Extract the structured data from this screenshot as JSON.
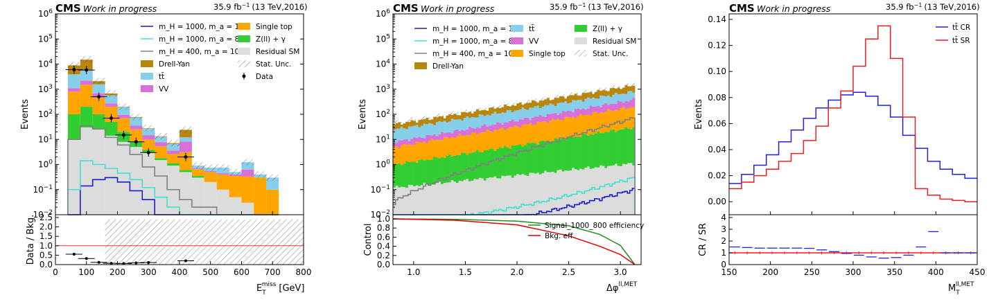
{
  "header": {
    "experiment": "CMS",
    "status": "Work in progress",
    "lumi_value": "35.9 fb",
    "lumi_exp": "−1",
    "lumi_energy": "(13 TeV,2016)"
  },
  "colors": {
    "drell_yan": "#b8860b",
    "ttbar": "#87ceeb",
    "vv": "#da70d6",
    "single_top": "#ffa500",
    "zll_gamma": "#32cd32",
    "residual": "#dcdcdc",
    "sig1": "#1c1ccc",
    "sig2": "#40e0d0",
    "sig3": "#808080",
    "cr": "#1e1ee6",
    "sr": "#ee1c1c",
    "sig_eff": "#228b22",
    "bkg_eff": "#e00000"
  },
  "chart_data": [
    {
      "type": "area",
      "id": "met",
      "xlabel": "E",
      "xlabel_sub": "T",
      "xlabel_sup": "miss",
      "xlabel_unit": "[GeV]",
      "ylabel": "Events",
      "ratio_ylabel": "Data / Bkg.",
      "log_y": true,
      "xlim": [
        0,
        800
      ],
      "ylim": [
        0.01,
        1000000
      ],
      "ratio_ylim": [
        0,
        2.0
      ],
      "xticks": [
        0,
        100,
        200,
        300,
        400,
        500,
        600,
        700,
        800
      ],
      "yticks": [
        "10^-2",
        "10^-1",
        "10^0",
        "10^1",
        "10^2",
        "10^3",
        "10^4",
        "10^5",
        "10^6"
      ],
      "ratio_yticks": [
        "0.0",
        "0.5",
        "1.0",
        "1.5",
        "2.0",
        "2.5"
      ],
      "bins": [
        40,
        80,
        120,
        160,
        200,
        240,
        280,
        320,
        360,
        400,
        440,
        480,
        520,
        560,
        600,
        640,
        680,
        720
      ],
      "stack": [
        {
          "name": "Residual SM",
          "key": "residual",
          "values": [
            10,
            30,
            25,
            14,
            8,
            5,
            3,
            1.5,
            0.9,
            0.5,
            0.3,
            0.2,
            0.1,
            0.05,
            0.03,
            0,
            0
          ]
        },
        {
          "name": "Z(ll) + γ",
          "key": "zll_gamma",
          "values": [
            90,
            170,
            75,
            36,
            12,
            3,
            0.8,
            0.3,
            0.2,
            0.1,
            0.05,
            0,
            0,
            0,
            0,
            0,
            0
          ]
        },
        {
          "name": "Single top",
          "key": "single_top",
          "values": [
            700,
            1300,
            350,
            150,
            50,
            17,
            6,
            3.5,
            1.5,
            2.5,
            0.3,
            0.3,
            0.3,
            0.3,
            0.3,
            0.3,
            0.1
          ]
        },
        {
          "name": "VV",
          "key": "vv",
          "values": [
            300,
            700,
            230,
            70,
            25,
            10,
            5,
            2.5,
            1,
            5,
            0.05,
            0.05,
            0.05,
            0.05,
            0.3,
            0,
            0
          ]
        },
        {
          "name": "tt̄",
          "key": "ttbar",
          "values": [
            2800,
            3800,
            900,
            300,
            100,
            40,
            12,
            5,
            3,
            4,
            0.2,
            0.2,
            0.3,
            0.1,
            0.6,
            0.1,
            0.2
          ]
        },
        {
          "name": "Drell-Yan",
          "key": "drell_yan",
          "values": [
            5000,
            9000,
            500,
            100,
            4,
            3,
            1,
            0.5,
            0.5,
            12,
            0,
            0,
            0,
            0,
            0,
            0,
            0
          ]
        }
      ],
      "stack_total": [
        8900,
        15000,
        2080,
        670,
        199,
        78,
        28,
        13.3,
        7.1,
        24.1,
        0.9,
        0.75,
        0.75,
        0.5,
        1.23,
        0.4,
        0.3
      ],
      "signals": [
        {
          "name": "m_H = 1000, m_a = 100",
          "key": "sig1",
          "values": [
            0.01,
            0.14,
            0.25,
            0.3,
            0.2,
            0.09,
            0.04,
            0.01,
            0.01,
            0.01,
            0.01,
            0.01,
            0.01,
            0.01,
            0.01,
            0.01,
            0.01
          ]
        },
        {
          "name": "m_H = 1000, m_a = 800",
          "key": "sig2",
          "values": [
            0.1,
            1.4,
            1.0,
            0.7,
            0.45,
            0.25,
            0.12,
            0.05,
            0.02,
            0.01,
            0.01,
            0.01,
            0.01,
            0.01,
            0.01,
            0.01,
            0.01
          ]
        },
        {
          "name": "m_H = 400, m_a = 100",
          "key": "sig3",
          "values": [
            10,
            35,
            26,
            12,
            6,
            2.5,
            0.8,
            0.35,
            0.1,
            0.04,
            0.02,
            0.02,
            0.01,
            0.01,
            0.01,
            0.01,
            0.01
          ]
        }
      ],
      "data": {
        "x": [
          60,
          100,
          140,
          180,
          220,
          260,
          300,
          420
        ],
        "y": [
          6000,
          5800,
          500,
          70,
          15,
          8,
          3,
          2
        ]
      },
      "ratio": {
        "x": [
          60,
          100,
          140,
          180,
          220,
          260,
          300,
          420
        ],
        "y": [
          0.55,
          0.32,
          0.12,
          0.07,
          0.06,
          0.09,
          0.11,
          0.2
        ]
      },
      "legend": [
        "m_H = 1000, m_a = 100",
        "m_H = 1000, m_a = 800",
        "m_H = 400, m_a = 100",
        "Drell-Yan",
        "tt̄",
        "VV",
        "Single top",
        "Z(ll) + γ",
        "Residual SM",
        "Stat. Unc.",
        "Data"
      ]
    },
    {
      "type": "area",
      "id": "dphi",
      "xlabel": "Δφ",
      "xlabel_sup": "ll,MET",
      "ylabel": "Events",
      "ratio_ylabel": "Control",
      "log_y": true,
      "xlim": [
        0.8,
        3.2
      ],
      "ylim": [
        0.01,
        1000000
      ],
      "ratio_ylim": [
        0,
        1.0
      ],
      "xticks": [
        "1.0",
        "1.5",
        "2.0",
        "2.5",
        "3.0"
      ],
      "yticks": [
        "10^-2",
        "10^-1",
        "10^0",
        "10^1",
        "10^2",
        "10^3",
        "10^4",
        "10^5",
        "10^6"
      ],
      "ratio_yticks": [
        "0.0",
        "0.2",
        "0.4",
        "0.6",
        "0.8",
        "1.0"
      ],
      "nbins": 96,
      "stack_envelope": [
        {
          "name": "Residual SM",
          "key": "residual",
          "start": 0.12,
          "end": 1.1
        },
        {
          "name": "Z(ll) + γ",
          "key": "zll_gamma",
          "start": 1.0,
          "end": 30
        },
        {
          "name": "Single top",
          "key": "single_top",
          "start": 5.0,
          "end": 200
        },
        {
          "name": "VV",
          "key": "vv",
          "start": 8.0,
          "end": 380
        },
        {
          "name": "tt̄",
          "key": "ttbar",
          "start": 25.0,
          "end": 800
        },
        {
          "name": "Drell-Yan",
          "key": "drell_yan",
          "start": 40.0,
          "end": 1400
        }
      ],
      "signals": [
        {
          "name": "m_H = 1000, m_a = 100",
          "key": "sig1",
          "start": 0.002,
          "end": 0.1
        },
        {
          "name": "m_H = 1000, m_a = 800",
          "key": "sig2",
          "start": 0.005,
          "end": 0.3
        },
        {
          "name": "m_H = 400, m_a = 100",
          "key": "sig3",
          "start": 0.03,
          "end": 70
        }
      ],
      "efficiency": [
        {
          "name": "Signal_1000_800 efficiency",
          "key": "sig_eff",
          "x": [
            0.8,
            1.4,
            2.0,
            2.5,
            2.8,
            3.0,
            3.14
          ],
          "y": [
            1.0,
            0.99,
            0.95,
            0.85,
            0.66,
            0.42,
            0.0
          ]
        },
        {
          "name": "Bkg. eff",
          "key": "bkg_eff",
          "x": [
            0.8,
            1.4,
            2.0,
            2.5,
            2.8,
            3.0,
            3.14
          ],
          "y": [
            1.0,
            0.97,
            0.87,
            0.63,
            0.4,
            0.22,
            0.0
          ]
        }
      ],
      "legend": [
        "m_H = 1000, m_a = 100",
        "m_H = 1000, m_a = 800",
        "m_H = 400, m_a = 100",
        "Drell-Yan",
        "tt̄",
        "VV",
        "Single top",
        "Z(ll) + γ",
        "Residual SM",
        "Stat. Unc."
      ]
    },
    {
      "type": "line",
      "id": "mt",
      "xlabel": "M",
      "xlabel_sub": "T",
      "xlabel_sup": "ll,MET",
      "ylabel": "Events",
      "ratio_ylabel": "CR / SR",
      "xlim": [
        150,
        450
      ],
      "ylim": [
        -0.01,
        0.14
      ],
      "ratio_ylim": [
        0,
        4
      ],
      "xticks": [
        150,
        200,
        250,
        300,
        350,
        400,
        450
      ],
      "yticks": [
        "0.00",
        "0.02",
        "0.04",
        "0.06",
        "0.08",
        "0.10",
        "0.12",
        "0.14"
      ],
      "ratio_yticks": [
        "0",
        "1",
        "2",
        "3",
        "4"
      ],
      "bin_edges": [
        150,
        165,
        180,
        195,
        210,
        225,
        240,
        255,
        270,
        285,
        300,
        315,
        330,
        345,
        360,
        375,
        390,
        405,
        420,
        435,
        450
      ],
      "series": [
        {
          "name": "tt̄ CR",
          "key": "cr",
          "values": [
            0.014,
            0.021,
            0.028,
            0.036,
            0.046,
            0.055,
            0.064,
            0.072,
            0.078,
            0.082,
            0.084,
            0.081,
            0.074,
            0.065,
            0.051,
            0.041,
            0.031,
            0.025,
            0.021,
            0.018
          ]
        },
        {
          "name": "tt̄ SR",
          "key": "sr",
          "values": [
            0.01,
            0.015,
            0.02,
            0.025,
            0.031,
            0.037,
            0.047,
            0.058,
            0.072,
            0.085,
            0.104,
            0.125,
            0.135,
            0.11,
            0.065,
            0.01,
            0.005,
            0.002,
            0.001,
            0.0
          ]
        }
      ],
      "ratio": {
        "x": [
          157,
          172,
          187,
          202,
          217,
          232,
          247,
          262,
          277,
          292,
          307,
          322,
          337,
          352,
          367,
          382,
          397,
          412,
          427,
          442
        ],
        "y": [
          1.5,
          1.45,
          1.4,
          1.4,
          1.4,
          1.4,
          1.38,
          1.25,
          1.1,
          0.95,
          0.8,
          0.65,
          0.55,
          0.6,
          0.8,
          1.5,
          2.8,
          1.0,
          1.0,
          1.0
        ]
      },
      "ratio_ref": 1.0,
      "legend": [
        "tt̄ CR",
        "tt̄ SR"
      ]
    }
  ]
}
